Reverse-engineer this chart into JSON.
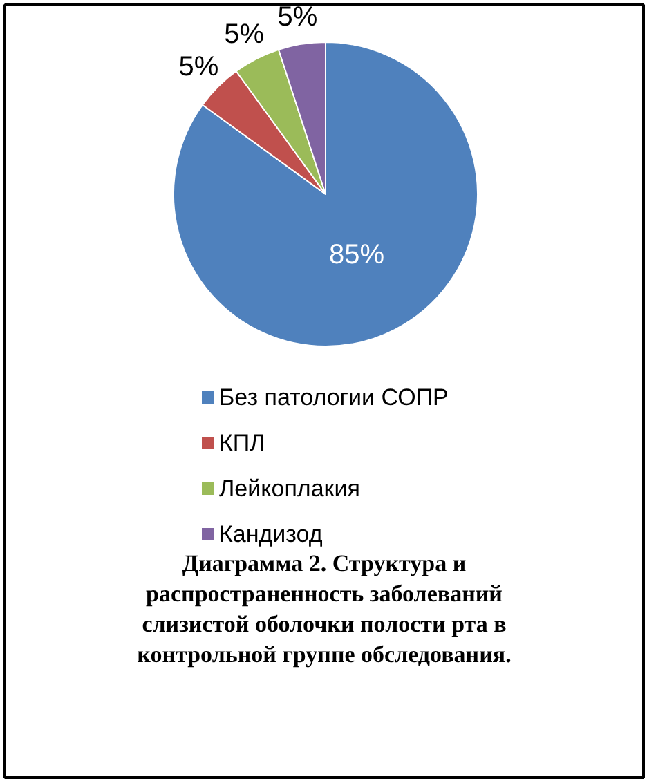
{
  "chart_data": {
    "type": "pie",
    "title": "Диаграмма 2. Структура и распространенность заболеваний слизистой оболочки полости рта в контрольной группе обследования.",
    "categories": [
      "Без патологии СОПР",
      "КПЛ",
      "Лейкоплакия",
      "Кандизод"
    ],
    "values": [
      85,
      5,
      5,
      5
    ],
    "colors": [
      "#4f81bd",
      "#c0504d",
      "#9bbb59",
      "#8064a2"
    ],
    "value_labels": [
      "85%",
      "5%",
      "5%",
      "5%"
    ],
    "legend": "bottom"
  }
}
